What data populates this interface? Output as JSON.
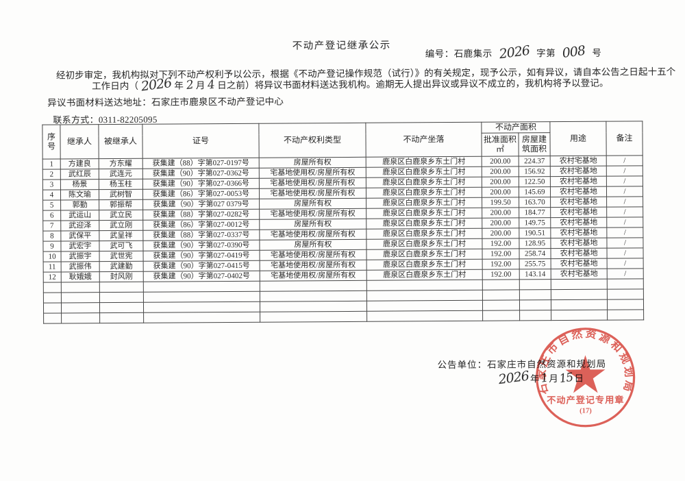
{
  "document": {
    "title": "不动产登记继承公示",
    "doc_no": {
      "prefix": "编号：石鹿集示",
      "year": "2026",
      "mid": "字第",
      "serial": "008",
      "suffix": "号"
    },
    "intro": {
      "line1": "经初步审定，我机构拟对下列不动产权利予以公示，根据《不动产登记操作规范（试行）》的有关规定，现予公示，如有异议，请自本公告之日起十五个",
      "line2_prefix": "工作日内（",
      "deadline_year": "2026",
      "year_unit": "年",
      "deadline_month": "2",
      "month_unit": "月",
      "deadline_day": "4",
      "line2_suffix": "日之前）将异议书面材料送达我机构。逾期无人提出异议或异议不成立的，我机构将予以登记。",
      "address_line": "异议书面材料送达地址：石家庄市鹿泉区不动产登记中心",
      "contact_line": "联系方式：0311-82205095"
    }
  },
  "table": {
    "headers": {
      "seq": "序\n号",
      "heir": "继承人",
      "decedent": "被继承人",
      "cert_no": "证号",
      "right_type": "不动产权利类型",
      "location": "不动产坐落",
      "area_group": "不动产面积",
      "approved_area": "批准面积\n㎡",
      "building_area": "房屋建\n筑面积",
      "usage": "用途",
      "remarks": "备注"
    },
    "rows": [
      [
        "1",
        "方建良",
        "方东耀",
        "获集建（88）字第027-0197号",
        "房屋所有权",
        "鹿泉区白鹿泉乡东土门村",
        "200.00",
        "224.37",
        "农村宅基地",
        "/"
      ],
      [
        "2",
        "武红辰",
        "武连元",
        "获集建（90）字第027-0362号",
        "宅基地使用权/房屋所有权",
        "鹿泉区白鹿泉乡东土门村",
        "200.00",
        "156.92",
        "农村宅基地",
        "/"
      ],
      [
        "3",
        "杨景",
        "杨玉柱",
        "获集建（90）字第027-0366号",
        "宅基地使用权/房屋所有权",
        "鹿泉区白鹿泉乡东土门村",
        "200.00",
        "122.50",
        "农村宅基地",
        "/"
      ],
      [
        "4",
        "陈文瑜",
        "武树智",
        "获集建（86）字第027-0053号",
        "宅基地使用权/房屋所有权",
        "鹿泉区白鹿泉乡东土门村",
        "200.00",
        "145.69",
        "农村宅基地",
        "/"
      ],
      [
        "5",
        "郭勤",
        "郭振帮",
        "获集建（90）字第027 0379号",
        "房屋所有权",
        "鹿泉区白鹿泉乡东土门村",
        "199.50",
        "163.70",
        "农村宅基地",
        "/"
      ],
      [
        "6",
        "武运山",
        "武立民",
        "获集建（88）字第027-0282号",
        "宅基地使用权/房屋所有权",
        "鹿泉区白鹿泉乡东土门村",
        "200.00",
        "184.77",
        "农村宅基地",
        "/"
      ],
      [
        "7",
        "武迎泽",
        "武立刚",
        "获集建（86）字第027-0012号",
        "房屋所有权",
        "鹿泉区白鹿泉乡东土门村",
        "200.00",
        "149.75",
        "农村宅基地",
        "/"
      ],
      [
        "8",
        "武保平",
        "武呈祥",
        "获集建（88）字第027-0337号",
        "宅基地使用权/房屋所有权",
        "鹿泉区白鹿泉乡东土门村",
        "200.00",
        "190.51",
        "农村宅基地",
        "/"
      ],
      [
        "9",
        "武宏宇",
        "武可飞",
        "获集建（90）字第027-0390号",
        "房屋所有权",
        "鹿泉区白鹿泉乡东土门村",
        "192.00",
        "128.95",
        "农村宅基地",
        "/"
      ],
      [
        "10",
        "武振宇",
        "武世宪",
        "获集建（90）字第027-0419号",
        "宅基地使用权/房屋所有权",
        "鹿泉区白鹿泉乡东土门村",
        "192.00",
        "258.74",
        "农村宅基地",
        "/"
      ],
      [
        "11",
        "武振伟",
        "武建勤",
        "获集建（90）字第027-0415号",
        "宅基地使用权/房屋所有权",
        "鹿泉区白鹿泉乡东土门村",
        "192.00",
        "255.75",
        "农村宅基地",
        "/"
      ],
      [
        "12",
        "耿娥娥",
        "封风刚",
        "获集建（90）字第027-0402号",
        "宅基地使用权/房屋所有权",
        "鹿泉区白鹿泉乡东土门村",
        "192.00",
        "143.14",
        "农村宅基地",
        "/"
      ]
    ],
    "empty_row_count": 4
  },
  "footer": {
    "announcer": "公告单位：石家庄市自然资源和规划局",
    "date": {
      "year": "2026",
      "year_unit": "年",
      "month": "1",
      "month_unit": "月",
      "day": "15",
      "day_unit": "日"
    },
    "stamp": {
      "ring_text": "石家庄市自然资源和规划局",
      "caption": "不动产登记专用章",
      "number": "(17)",
      "color": "#d84b42"
    }
  }
}
